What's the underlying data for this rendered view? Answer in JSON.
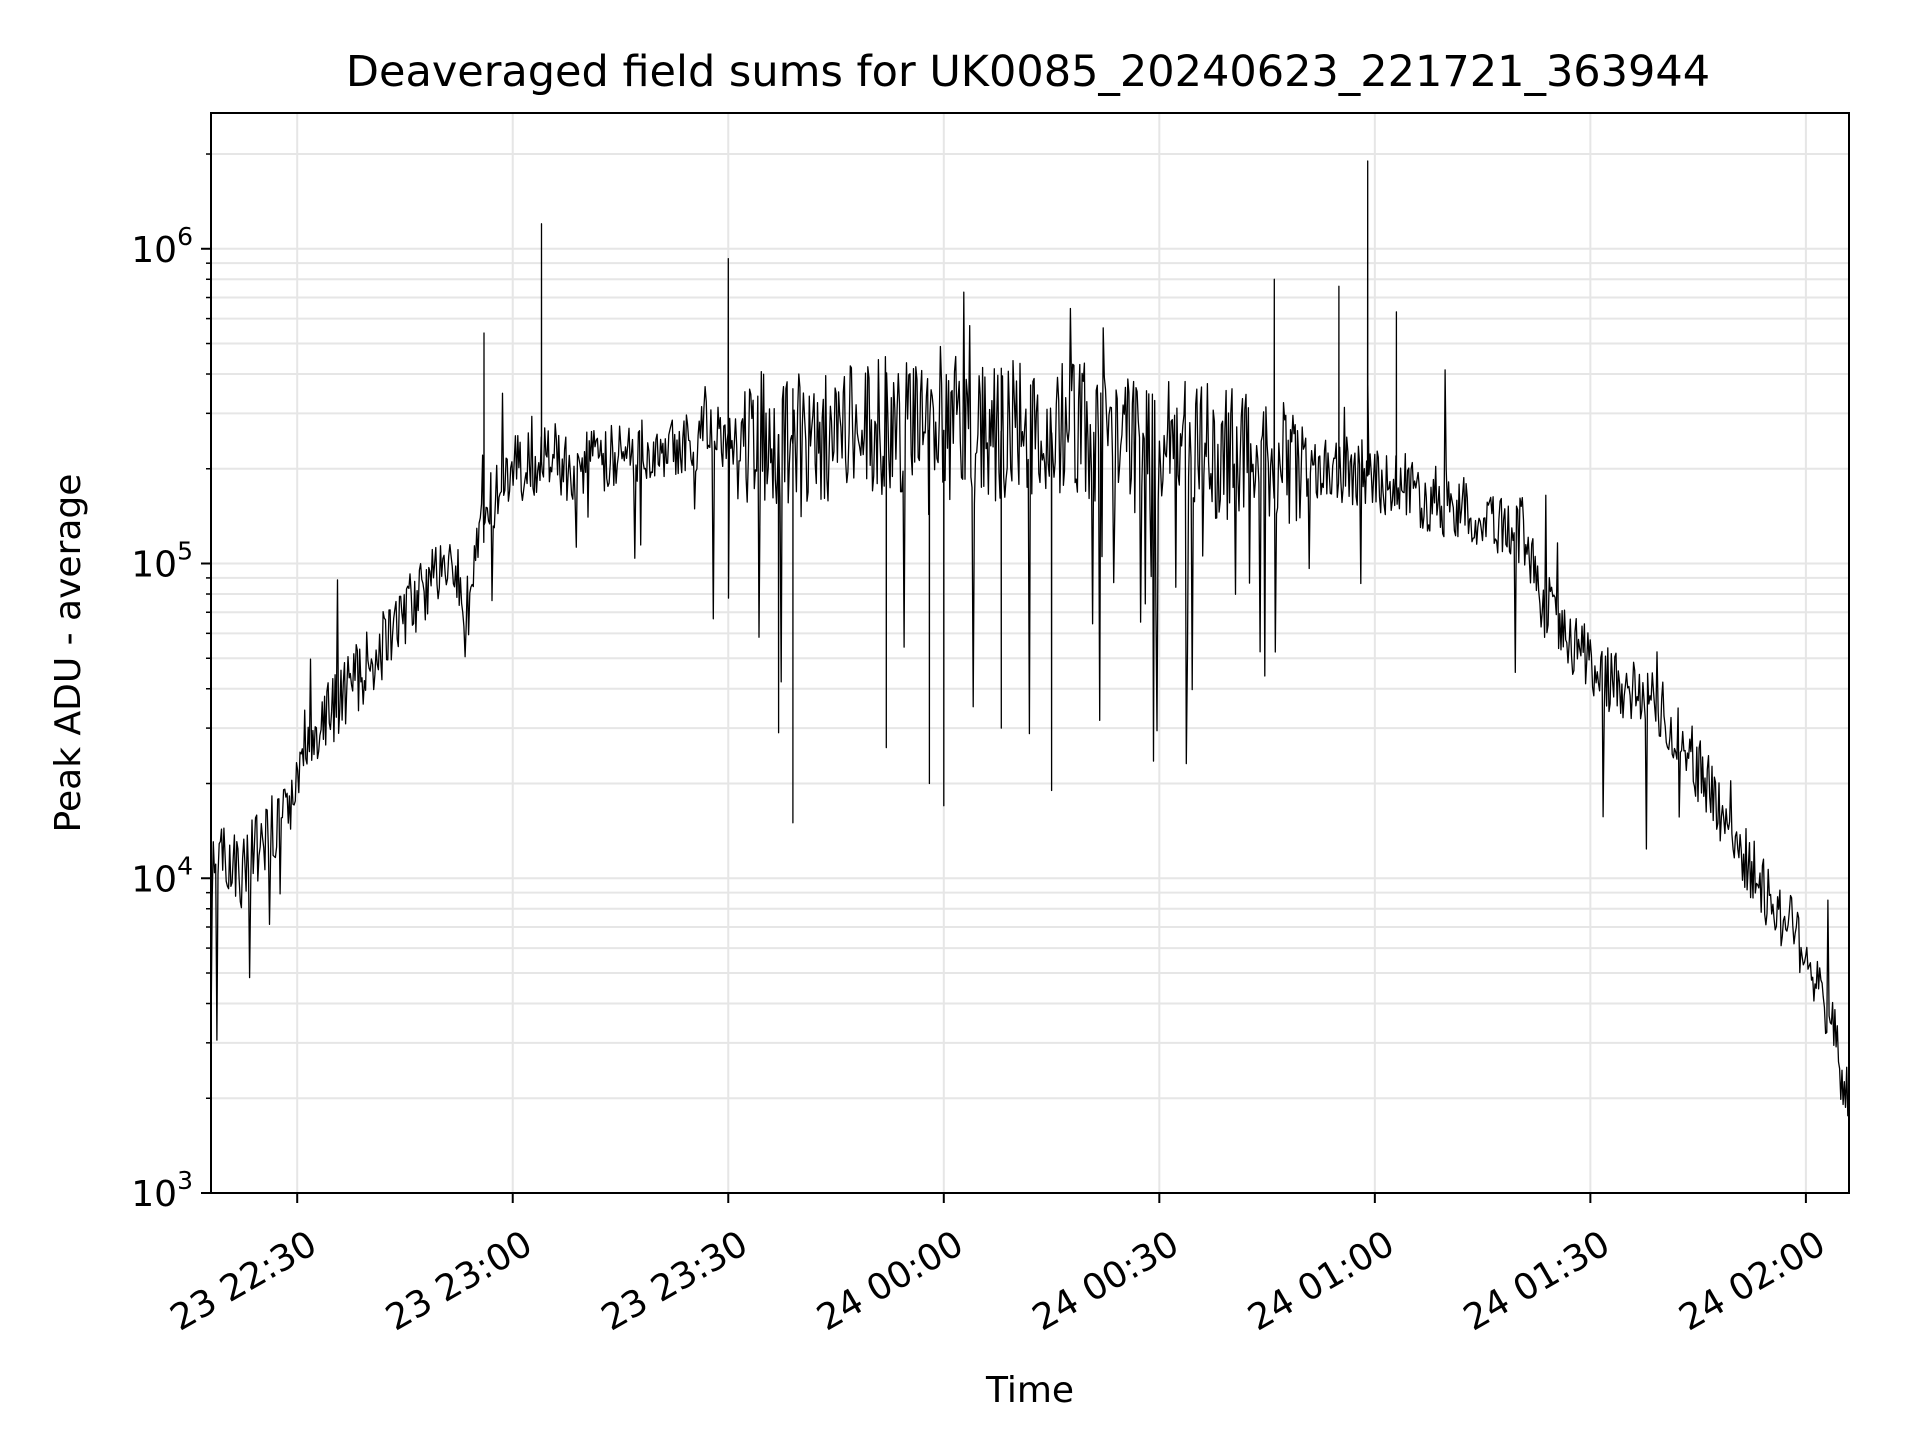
{
  "chart_data": {
    "type": "line",
    "title": "Deaveraged field sums for UK0085_20240623_221721_363944",
    "xlabel": "Time",
    "ylabel": "Peak ADU - average",
    "yscale": "log",
    "ylim": [
      1000,
      2700000
    ],
    "xlim": [
      "2024-06-23 22:18",
      "2024-06-24 02:06"
    ],
    "grid": true,
    "line_color": "#000000",
    "grid_color": "#e6e6e6",
    "x_ticks": [
      {
        "t": "2024-06-23 22:30",
        "label": "23 22:30"
      },
      {
        "t": "2024-06-23 23:00",
        "label": "23 23:00"
      },
      {
        "t": "2024-06-23 23:30",
        "label": "23 23:30"
      },
      {
        "t": "2024-06-24 00:00",
        "label": "24 00:00"
      },
      {
        "t": "2024-06-24 00:30",
        "label": "24 00:30"
      },
      {
        "t": "2024-06-24 01:00",
        "label": "24 01:00"
      },
      {
        "t": "2024-06-24 01:30",
        "label": "24 01:30"
      },
      {
        "t": "2024-06-24 02:00",
        "label": "24 02:00"
      }
    ],
    "y_ticks": [
      {
        "value": 1000,
        "base": "10",
        "exp": "3"
      },
      {
        "value": 10000,
        "base": "10",
        "exp": "4"
      },
      {
        "value": 100000,
        "base": "10",
        "exp": "5"
      },
      {
        "value": 1000000,
        "base": "10",
        "exp": "6"
      }
    ],
    "series": [
      {
        "x": [
          "2024-06-23 22:18",
          "2024-06-23 22:20",
          "2024-06-23 22:22",
          "2024-06-23 22:24",
          "2024-06-23 22:25",
          "2024-06-23 22:26",
          "2024-06-23 22:28",
          "2024-06-23 22:30",
          "2024-06-23 22:33",
          "2024-06-23 22:36",
          "2024-06-23 22:39",
          "2024-06-23 22:42",
          "2024-06-23 22:45",
          "2024-06-23 22:48",
          "2024-06-23 22:51",
          "2024-06-23 22:54",
          "2024-06-23 22:55",
          "2024-06-23 22:57",
          "2024-06-23 23:00",
          "2024-06-23 23:04",
          "2024-06-23 23:05",
          "2024-06-23 23:08",
          "2024-06-23 23:12",
          "2024-06-23 23:16",
          "2024-06-23 23:20",
          "2024-06-23 23:25",
          "2024-06-23 23:30",
          "2024-06-23 23:35",
          "2024-06-23 23:38",
          "2024-06-23 23:39",
          "2024-06-23 23:42",
          "2024-06-23 23:46",
          "2024-06-23 23:50",
          "2024-06-23 23:53",
          "2024-06-23 23:57",
          "2024-06-23 23:59",
          "2024-06-24 00:03",
          "2024-06-24 00:07",
          "2024-06-24 00:10",
          "2024-06-24 00:13",
          "2024-06-24 00:15",
          "2024-06-24 00:18",
          "2024-06-24 00:22",
          "2024-06-24 00:26",
          "2024-06-24 00:30",
          "2024-06-24 00:35",
          "2024-06-24 00:40",
          "2024-06-24 00:45",
          "2024-06-24 00:50",
          "2024-06-24 00:55",
          "2024-06-24 00:59",
          "2024-06-24 01:03",
          "2024-06-24 01:08",
          "2024-06-24 01:12",
          "2024-06-24 01:16",
          "2024-06-24 01:19",
          "2024-06-24 01:21",
          "2024-06-24 01:23",
          "2024-06-24 01:25",
          "2024-06-24 01:28",
          "2024-06-24 01:31",
          "2024-06-24 01:34",
          "2024-06-24 01:37",
          "2024-06-24 01:40",
          "2024-06-24 01:43",
          "2024-06-24 01:46",
          "2024-06-24 01:49",
          "2024-06-24 01:52",
          "2024-06-24 01:55",
          "2024-06-24 01:58",
          "2024-06-24 02:00",
          "2024-06-24 02:02",
          "2024-06-24 02:04",
          "2024-06-24 02:06"
        ],
        "y": [
          11000,
          12000,
          10000,
          13000,
          12000,
          14000,
          16000,
          20000,
          28000,
          38000,
          45000,
          55000,
          70000,
          85000,
          100000,
          75000,
          110000,
          160000,
          200000,
          210000,
          230000,
          200000,
          210000,
          220000,
          240000,
          250000,
          260000,
          250000,
          260000,
          240000,
          250000,
          260000,
          270000,
          280000,
          260000,
          270000,
          250000,
          260000,
          270000,
          250000,
          260000,
          270000,
          250000,
          240000,
          230000,
          230000,
          220000,
          220000,
          210000,
          200000,
          190000,
          180000,
          160000,
          150000,
          140000,
          130000,
          125000,
          80000,
          65000,
          55000,
          45000,
          42000,
          38000,
          33000,
          28000,
          20000,
          15000,
          11000,
          8500,
          7000,
          6000,
          4500,
          3000,
          2000
        ],
        "peaks": [
          {
            "t": "2024-06-23 22:56",
            "y": 540000
          },
          {
            "t": "2024-06-23 23:04",
            "y": 1200000
          },
          {
            "t": "2024-06-23 23:30",
            "y": 930000
          },
          {
            "t": "2024-06-24 00:46",
            "y": 800000
          },
          {
            "t": "2024-06-24 00:55",
            "y": 760000
          },
          {
            "t": "2024-06-24 00:59",
            "y": 1900000
          },
          {
            "t": "2024-06-24 01:03",
            "y": 630000
          }
        ],
        "dips": [
          {
            "t": "2024-06-23 23:39",
            "y": 15000
          },
          {
            "t": "2024-06-23 23:37",
            "y": 29000
          },
          {
            "t": "2024-06-23 23:52",
            "y": 26000
          },
          {
            "t": "2024-06-23 23:58",
            "y": 20000
          },
          {
            "t": "2024-06-24 00:00",
            "y": 17000
          },
          {
            "t": "2024-06-24 00:15",
            "y": 19000
          },
          {
            "t": "2024-06-24 00:08",
            "y": 30000
          }
        ]
      }
    ]
  }
}
